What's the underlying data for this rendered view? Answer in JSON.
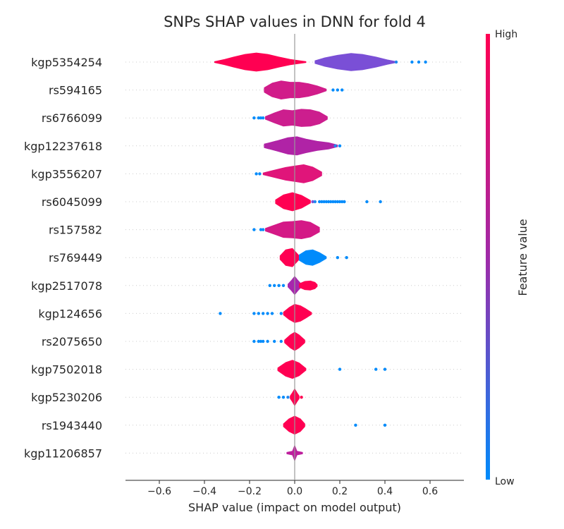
{
  "chart_data": {
    "type": "violin",
    "title": "SNPs SHAP values in DNN for fold 4",
    "xlabel": "SHAP value (impact on model output)",
    "xlim": [
      -0.75,
      0.75
    ],
    "xticks": [
      -0.6,
      -0.4,
      -0.2,
      0.0,
      0.2,
      0.4,
      0.6
    ],
    "xtick_labels": [
      "−0.6",
      "−0.4",
      "−0.2",
      "0.0",
      "0.2",
      "0.4",
      "0.6"
    ],
    "colorbar": {
      "label": "Feature value",
      "high_label": "High",
      "low_label": "Low",
      "high_color": "#ff0052",
      "low_color": "#008bfb"
    },
    "features": [
      {
        "name": "kgp5354254",
        "violins": [
          {
            "x": [
              -0.355,
              -0.31,
              -0.27,
              -0.22,
              -0.17,
              -0.12,
              -0.07,
              -0.02,
              0.05
            ],
            "w": [
              0.05,
              0.3,
              0.55,
              0.85,
              1.0,
              0.85,
              0.55,
              0.3,
              0.05
            ],
            "color": "#ff0052",
            "scale": 13
          },
          {
            "x": [
              0.09,
              0.13,
              0.19,
              0.25,
              0.3,
              0.36,
              0.41,
              0.45
            ],
            "w": [
              0.15,
              0.45,
              0.75,
              0.95,
              0.85,
              0.55,
              0.25,
              0.05
            ],
            "color": "#7a4fd6",
            "scale": 13
          }
        ],
        "dots": [
          {
            "x": 0.45,
            "c": "#1e88f0"
          },
          {
            "x": 0.52,
            "c": "#008bfb"
          },
          {
            "x": 0.55,
            "c": "#008bfb"
          },
          {
            "x": 0.58,
            "c": "#008bfb"
          }
        ]
      },
      {
        "name": "rs594165",
        "violins": [
          {
            "x": [
              -0.135,
              -0.1,
              -0.06,
              -0.02,
              0.02,
              0.06,
              0.1,
              0.14
            ],
            "w": [
              0.25,
              0.75,
              1.0,
              0.85,
              0.85,
              0.7,
              0.45,
              0.1
            ],
            "color": "#d11c8a",
            "scale": 13
          }
        ],
        "dots": [
          {
            "x": 0.17,
            "c": "#008bfb"
          },
          {
            "x": 0.19,
            "c": "#008bfb"
          },
          {
            "x": 0.21,
            "c": "#008bfb"
          }
        ]
      },
      {
        "name": "rs6766099",
        "violins": [
          {
            "x": [
              -0.13,
              -0.09,
              -0.05,
              -0.01,
              0.03,
              0.07,
              0.11,
              0.145
            ],
            "w": [
              0.15,
              0.55,
              0.9,
              0.8,
              0.95,
              0.9,
              0.65,
              0.15
            ],
            "color": "#cc1e8e",
            "scale": 13
          }
        ],
        "dots": [
          {
            "x": -0.18,
            "c": "#008bfb"
          },
          {
            "x": -0.16,
            "c": "#008bfb"
          },
          {
            "x": -0.15,
            "c": "#008bfb"
          },
          {
            "x": -0.14,
            "c": "#008bfb"
          }
        ]
      },
      {
        "name": "kgp12237618",
        "violins": [
          {
            "x": [
              -0.135,
              -0.08,
              -0.03,
              0.01,
              0.05,
              0.1,
              0.15,
              0.19
            ],
            "w": [
              0.2,
              0.55,
              0.9,
              1.0,
              0.75,
              0.5,
              0.35,
              0.1
            ],
            "color": "#b023a6",
            "scale": 13
          }
        ],
        "dots": [
          {
            "x": 0.18,
            "c": "#1e88f0"
          },
          {
            "x": 0.2,
            "c": "#008bfb"
          }
        ]
      },
      {
        "name": "kgp3556207",
        "violins": [
          {
            "x": [
              -0.14,
              -0.09,
              -0.04,
              0.0,
              0.04,
              0.08,
              0.12
            ],
            "w": [
              0.1,
              0.4,
              0.7,
              0.85,
              1.0,
              0.75,
              0.2
            ],
            "color": "#e0157a",
            "scale": 13
          }
        ],
        "dots": [
          {
            "x": -0.17,
            "c": "#008bfb"
          },
          {
            "x": -0.155,
            "c": "#008bfb"
          }
        ]
      },
      {
        "name": "rs6045099",
        "violins": [
          {
            "x": [
              -0.085,
              -0.05,
              -0.01,
              0.03,
              0.07
            ],
            "w": [
              0.2,
              0.75,
              1.0,
              0.7,
              0.15
            ],
            "color": "#ff0052",
            "scale": 13
          }
        ],
        "dots": [
          {
            "x": 0.08,
            "c": "#7a4fd6"
          },
          {
            "x": 0.09,
            "c": "#1e88f0"
          },
          {
            "x": 0.11,
            "c": "#008bfb"
          },
          {
            "x": 0.12,
            "c": "#008bfb"
          },
          {
            "x": 0.13,
            "c": "#008bfb"
          },
          {
            "x": 0.14,
            "c": "#008bfb"
          },
          {
            "x": 0.15,
            "c": "#008bfb"
          },
          {
            "x": 0.16,
            "c": "#008bfb"
          },
          {
            "x": 0.17,
            "c": "#008bfb"
          },
          {
            "x": 0.18,
            "c": "#008bfb"
          },
          {
            "x": 0.19,
            "c": "#008bfb"
          },
          {
            "x": 0.2,
            "c": "#008bfb"
          },
          {
            "x": 0.21,
            "c": "#008bfb"
          },
          {
            "x": 0.22,
            "c": "#008bfb"
          },
          {
            "x": 0.32,
            "c": "#008bfb"
          },
          {
            "x": 0.38,
            "c": "#008bfb"
          }
        ]
      },
      {
        "name": "rs157582",
        "violins": [
          {
            "x": [
              -0.13,
              -0.09,
              -0.05,
              -0.01,
              0.03,
              0.07,
              0.11
            ],
            "w": [
              0.15,
              0.5,
              0.85,
              0.9,
              1.0,
              0.8,
              0.25
            ],
            "color": "#d41986",
            "scale": 13
          }
        ],
        "dots": [
          {
            "x": -0.18,
            "c": "#008bfb"
          },
          {
            "x": -0.15,
            "c": "#008bfb"
          },
          {
            "x": -0.14,
            "c": "#008bfb"
          }
        ]
      },
      {
        "name": "rs769449",
        "violins": [
          {
            "x": [
              -0.065,
              -0.04,
              -0.01,
              0.02
            ],
            "w": [
              0.2,
              0.85,
              1.0,
              0.2
            ],
            "color": "#ff0052",
            "scale": 13
          },
          {
            "x": [
              0.02,
              0.05,
              0.08,
              0.11,
              0.14
            ],
            "w": [
              0.3,
              0.75,
              0.85,
              0.55,
              0.1
            ],
            "color": "#008bfb",
            "scale": 13
          }
        ],
        "dots": [
          {
            "x": 0.19,
            "c": "#008bfb"
          },
          {
            "x": 0.23,
            "c": "#008bfb"
          }
        ]
      },
      {
        "name": "kgp2517078",
        "violins": [
          {
            "x": [
              -0.03,
              -0.015,
              0.0,
              0.015,
              0.03
            ],
            "w": [
              0.15,
              0.55,
              1.0,
              0.55,
              0.15
            ],
            "color": "#a726ad",
            "scale": 13
          },
          {
            "x": [
              0.02,
              0.045,
              0.07,
              0.09,
              0.1
            ],
            "w": [
              0.2,
              0.45,
              0.5,
              0.35,
              0.1
            ],
            "color": "#ff0052",
            "scale": 13
          }
        ],
        "dots": [
          {
            "x": -0.11,
            "c": "#008bfb"
          },
          {
            "x": -0.09,
            "c": "#008bfb"
          },
          {
            "x": -0.07,
            "c": "#008bfb"
          },
          {
            "x": -0.05,
            "c": "#008bfb"
          }
        ]
      },
      {
        "name": "kgp124656",
        "violins": [
          {
            "x": [
              -0.05,
              -0.025,
              0.0,
              0.025,
              0.05,
              0.075
            ],
            "w": [
              0.15,
              0.65,
              1.0,
              0.85,
              0.5,
              0.1
            ],
            "color": "#ff0052",
            "scale": 13
          }
        ],
        "dots": [
          {
            "x": -0.33,
            "c": "#008bfb"
          },
          {
            "x": -0.18,
            "c": "#008bfb"
          },
          {
            "x": -0.16,
            "c": "#008bfb"
          },
          {
            "x": -0.14,
            "c": "#008bfb"
          },
          {
            "x": -0.12,
            "c": "#008bfb"
          },
          {
            "x": -0.1,
            "c": "#008bfb"
          },
          {
            "x": -0.06,
            "c": "#008bfb"
          }
        ]
      },
      {
        "name": "rs2075650",
        "violins": [
          {
            "x": [
              -0.045,
              -0.02,
              0.0,
              0.02,
              0.045
            ],
            "w": [
              0.15,
              0.7,
              1.0,
              0.7,
              0.15
            ],
            "color": "#ff0052",
            "scale": 13
          }
        ],
        "dots": [
          {
            "x": -0.18,
            "c": "#008bfb"
          },
          {
            "x": -0.16,
            "c": "#008bfb"
          },
          {
            "x": -0.15,
            "c": "#008bfb"
          },
          {
            "x": -0.14,
            "c": "#008bfb"
          },
          {
            "x": -0.12,
            "c": "#008bfb"
          },
          {
            "x": -0.09,
            "c": "#008bfb"
          },
          {
            "x": -0.06,
            "c": "#008bfb"
          }
        ]
      },
      {
        "name": "kgp7502018",
        "violins": [
          {
            "x": [
              -0.075,
              -0.04,
              -0.01,
              0.02,
              0.05
            ],
            "w": [
              0.15,
              0.75,
              1.0,
              0.7,
              0.1
            ],
            "color": "#ff0052",
            "scale": 13
          }
        ],
        "dots": [
          {
            "x": 0.2,
            "c": "#008bfb"
          },
          {
            "x": 0.36,
            "c": "#008bfb"
          },
          {
            "x": 0.4,
            "c": "#008bfb"
          }
        ]
      },
      {
        "name": "kgp5230206",
        "violins": [
          {
            "x": [
              -0.02,
              -0.01,
              0.0,
              0.01,
              0.02
            ],
            "w": [
              0.15,
              0.55,
              1.0,
              0.55,
              0.15
            ],
            "color": "#ff0052",
            "scale": 12
          }
        ],
        "dots": [
          {
            "x": -0.07,
            "c": "#008bfb"
          },
          {
            "x": -0.05,
            "c": "#008bfb"
          },
          {
            "x": -0.03,
            "c": "#1e88f0"
          },
          {
            "x": 0.03,
            "c": "#ff0052"
          }
        ]
      },
      {
        "name": "rs1943440",
        "violins": [
          {
            "x": [
              -0.05,
              -0.025,
              0.0,
              0.025,
              0.045
            ],
            "w": [
              0.15,
              0.7,
              1.0,
              0.7,
              0.15
            ],
            "color": "#ff0052",
            "scale": 13
          }
        ],
        "dots": [
          {
            "x": 0.27,
            "c": "#008bfb"
          },
          {
            "x": 0.4,
            "c": "#008bfb"
          }
        ]
      },
      {
        "name": "kgp11206857",
        "violins": [
          {
            "x": [
              -0.035,
              -0.01,
              0.0,
              0.01,
              0.035
            ],
            "w": [
              0.1,
              0.25,
              1.0,
              0.25,
              0.1
            ],
            "color": "#bd1f9c",
            "scale": 11
          }
        ],
        "dots": []
      }
    ]
  }
}
